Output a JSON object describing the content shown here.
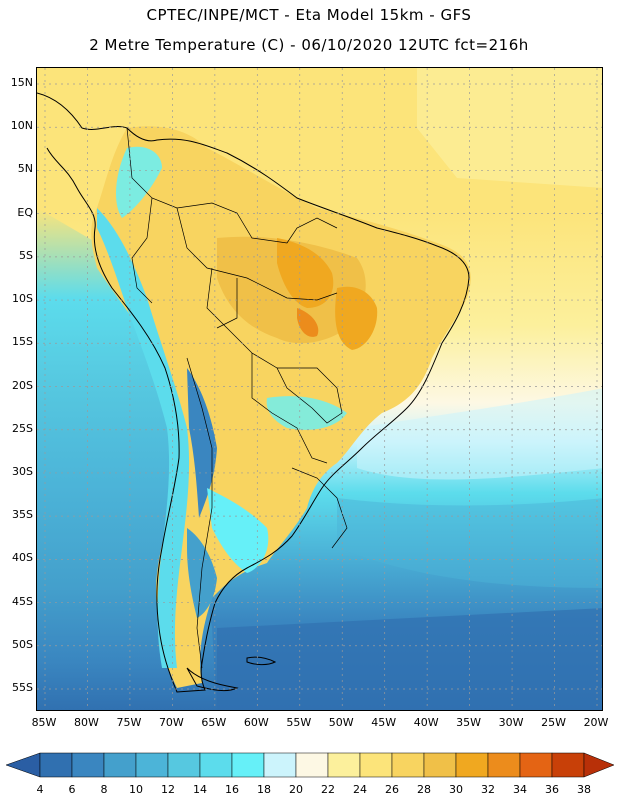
{
  "header": {
    "line1": "CPTEC/INPE/MCT -  Eta Model 15km - GFS",
    "line2": "2 Metre Temperature (C) - 06/10/2020 12UTC fct=216h"
  },
  "map": {
    "lat_labels": [
      "15N",
      "10N",
      "5N",
      "EQ",
      "5S",
      "10S",
      "15S",
      "20S",
      "25S",
      "30S",
      "35S",
      "40S",
      "45S",
      "50S",
      "55S"
    ],
    "lon_labels": [
      "85W",
      "80W",
      "75W",
      "70W",
      "65W",
      "60W",
      "55W",
      "50W",
      "45W",
      "40W",
      "35W",
      "30W",
      "25W",
      "20W"
    ],
    "land_color": "#000000",
    "grid_color": "#9a9a9a"
  },
  "colorbar": {
    "levels": [
      "4",
      "6",
      "8",
      "10",
      "12",
      "14",
      "16",
      "18",
      "20",
      "22",
      "24",
      "26",
      "28",
      "30",
      "32",
      "34",
      "36",
      "38"
    ],
    "colors": [
      "#3070b0",
      "#3a86c0",
      "#44a0cc",
      "#4cb4d8",
      "#56c8e0",
      "#5cdcec",
      "#66f0f8",
      "#ccf4fc",
      "#fdf8e4",
      "#fcf09c",
      "#fce47a",
      "#f8d460",
      "#f0c048",
      "#f0a820",
      "#ec8c1c",
      "#e46414",
      "#c84008"
    ],
    "low_color": "#2a5ea4",
    "high_color": "#b83008"
  }
}
